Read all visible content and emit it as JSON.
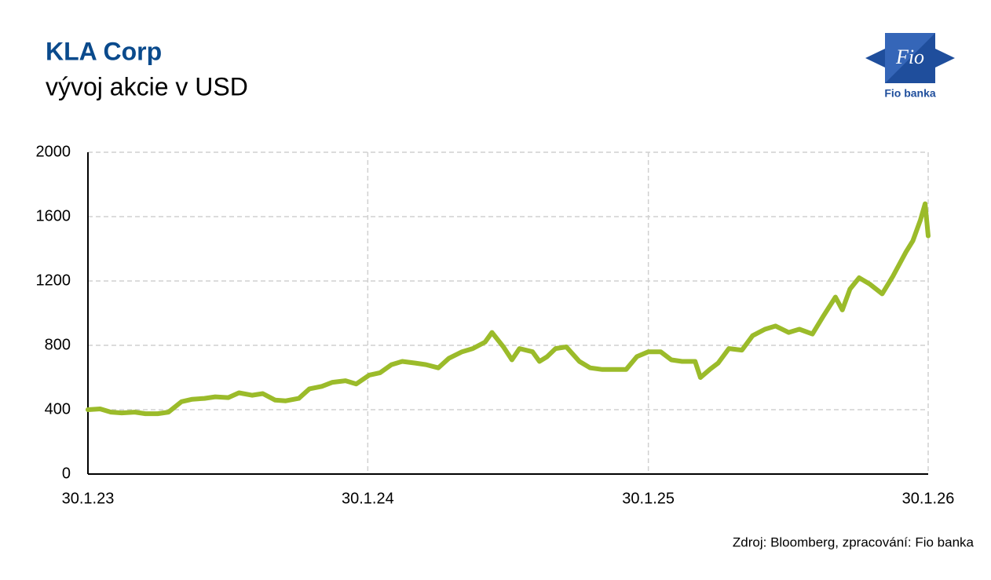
{
  "chart_data": {
    "type": "line",
    "title": "KLA Corp",
    "subtitle": "vývoj akcie v USD",
    "source": "Zdroj: Bloomberg, zpracování: Fio banka",
    "logo": {
      "mark": "Fio",
      "name": "Fio banka"
    },
    "x": [
      "2023-01-30",
      "2023-02-15",
      "2023-03-01",
      "2023-03-15",
      "2023-04-01",
      "2023-04-15",
      "2023-05-01",
      "2023-05-15",
      "2023-06-01",
      "2023-06-15",
      "2023-07-01",
      "2023-07-15",
      "2023-08-01",
      "2023-08-15",
      "2023-09-01",
      "2023-09-15",
      "2023-10-01",
      "2023-10-15",
      "2023-11-01",
      "2023-11-15",
      "2023-12-01",
      "2023-12-15",
      "2024-01-01",
      "2024-01-15",
      "2024-02-01",
      "2024-02-15",
      "2024-03-01",
      "2024-03-15",
      "2024-04-01",
      "2024-04-15",
      "2024-05-01",
      "2024-05-15",
      "2024-06-01",
      "2024-06-15",
      "2024-07-01",
      "2024-07-10",
      "2024-07-25",
      "2024-08-05",
      "2024-08-15",
      "2024-09-01",
      "2024-09-10",
      "2024-09-20",
      "2024-10-01",
      "2024-10-15",
      "2024-11-01",
      "2024-11-15",
      "2024-12-01",
      "2024-12-15",
      "2025-01-01",
      "2025-01-15",
      "2025-01-30",
      "2025-02-15",
      "2025-03-01",
      "2025-03-15",
      "2025-04-01",
      "2025-04-08",
      "2025-04-20",
      "2025-05-01",
      "2025-05-15",
      "2025-06-01",
      "2025-06-15",
      "2025-07-01",
      "2025-07-15",
      "2025-08-01",
      "2025-08-15",
      "2025-09-01",
      "2025-09-15",
      "2025-10-01",
      "2025-10-10",
      "2025-10-20",
      "2025-11-01",
      "2025-11-15",
      "2025-12-01",
      "2025-12-15",
      "2026-01-01",
      "2026-01-10",
      "2026-01-20",
      "2026-01-26",
      "2026-01-30"
    ],
    "series": [
      {
        "name": "KLA Corp",
        "color": "#9bbb2a",
        "values": [
          400,
          405,
          385,
          380,
          385,
          375,
          375,
          385,
          450,
          465,
          470,
          480,
          475,
          505,
          490,
          500,
          460,
          455,
          470,
          530,
          545,
          570,
          580,
          560,
          615,
          630,
          680,
          700,
          690,
          680,
          660,
          720,
          760,
          780,
          820,
          880,
          790,
          710,
          780,
          760,
          700,
          730,
          780,
          790,
          700,
          660,
          650,
          650,
          650,
          730,
          760,
          760,
          710,
          700,
          700,
          600,
          650,
          690,
          780,
          770,
          860,
          900,
          920,
          880,
          900,
          870,
          980,
          1100,
          1020,
          1150,
          1220,
          1180,
          1120,
          1230,
          1380,
          1450,
          1580,
          1680,
          1480
        ]
      }
    ],
    "xlim": [
      "2023-01-30",
      "2026-01-30"
    ],
    "xticks": [
      {
        "value": "2023-01-30",
        "label": "30.1.23"
      },
      {
        "value": "2024-01-30",
        "label": "30.1.24"
      },
      {
        "value": "2025-01-30",
        "label": "30.1.25"
      },
      {
        "value": "2026-01-30",
        "label": "30.1.26"
      }
    ],
    "ylim": [
      0,
      2000
    ],
    "yticks": [
      0,
      400,
      800,
      1200,
      1600,
      2000
    ],
    "grid": true
  }
}
